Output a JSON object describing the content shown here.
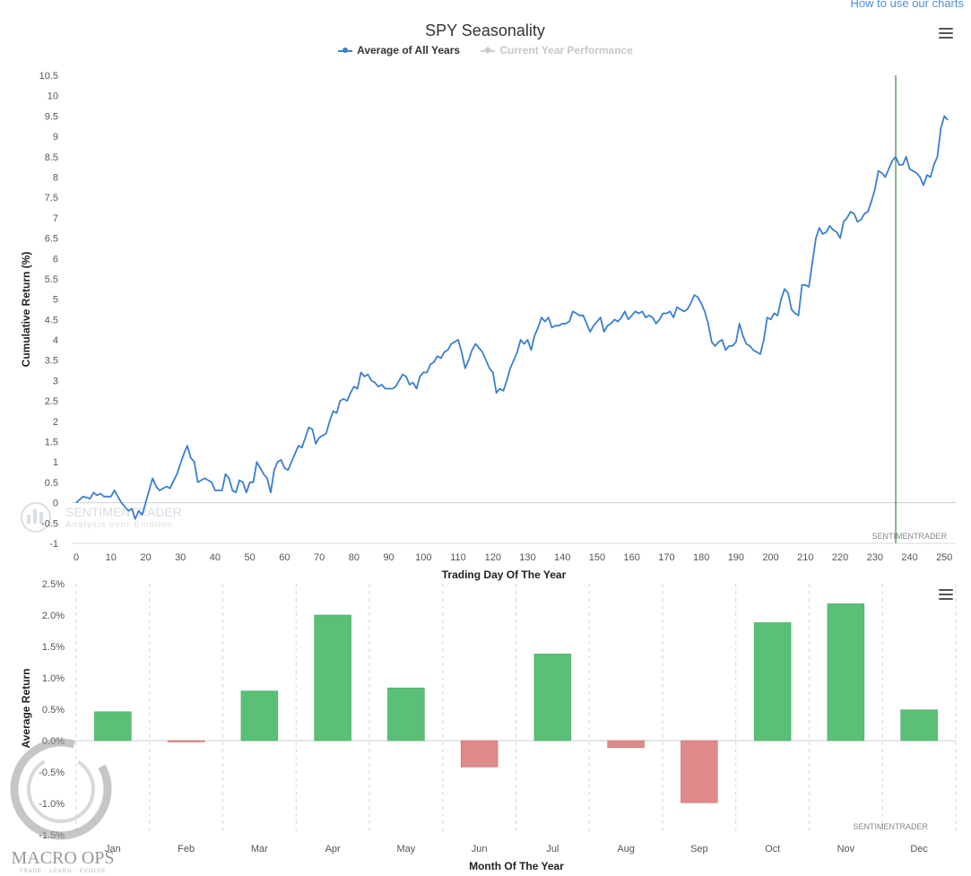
{
  "header": {
    "link_label": "How to use our charts"
  },
  "menu_icon": "hamburger-menu-icon",
  "chart_data": [
    {
      "type": "line",
      "title": "SPY Seasonality",
      "xlabel": "Trading Day Of The Year",
      "ylabel": "Cumulative Return (%)",
      "xlim": [
        0,
        252
      ],
      "ylim": [
        -1,
        10.5
      ],
      "x_ticks": [
        0,
        10,
        20,
        30,
        40,
        50,
        60,
        70,
        80,
        90,
        100,
        110,
        120,
        130,
        140,
        150,
        160,
        170,
        180,
        190,
        200,
        210,
        220,
        230,
        240,
        250
      ],
      "y_ticks": [
        -1,
        -0.5,
        0,
        0.5,
        1,
        1.5,
        2,
        2.5,
        3,
        3.5,
        4,
        4.5,
        5,
        5.5,
        6,
        6.5,
        7,
        7.5,
        8,
        8.5,
        9,
        9.5,
        10,
        10.5
      ],
      "vertical_line_x": 236,
      "vertical_line_color": "#1a6b1a",
      "credit": "SENTIMENTRADER",
      "watermark": {
        "brand": "SENTIMENTRADER",
        "tagline": "Analysis over Emotion"
      },
      "legend_position": "top-center",
      "series": [
        {
          "name": "Average of All Years",
          "color": "#3a7fd0",
          "points": [
            [
              0,
              0
            ],
            [
              2,
              0.15
            ],
            [
              4,
              0.1
            ],
            [
              5,
              0.25
            ],
            [
              6,
              0.18
            ],
            [
              7,
              0.22
            ],
            [
              8,
              0.15
            ],
            [
              10,
              0.15
            ],
            [
              11,
              0.3
            ],
            [
              13,
              0.0
            ],
            [
              15,
              -0.2
            ],
            [
              16,
              -0.15
            ],
            [
              17,
              -0.4
            ],
            [
              18,
              -0.2
            ],
            [
              19,
              -0.3
            ],
            [
              21,
              0.3
            ],
            [
              22,
              0.6
            ],
            [
              23,
              0.4
            ],
            [
              24,
              0.3
            ],
            [
              26,
              0.4
            ],
            [
              27,
              0.35
            ],
            [
              29,
              0.7
            ],
            [
              31,
              1.2
            ],
            [
              32,
              1.4
            ],
            [
              33,
              1.1
            ],
            [
              34,
              1.0
            ],
            [
              35,
              0.5
            ],
            [
              37,
              0.6
            ],
            [
              39,
              0.5
            ],
            [
              40,
              0.3
            ],
            [
              42,
              0.3
            ],
            [
              43,
              0.7
            ],
            [
              44,
              0.6
            ],
            [
              45,
              0.3
            ],
            [
              46,
              0.25
            ],
            [
              47,
              0.55
            ],
            [
              48,
              0.5
            ],
            [
              49,
              0.25
            ],
            [
              50,
              0.5
            ],
            [
              51,
              0.5
            ],
            [
              52,
              1.0
            ],
            [
              53,
              0.85
            ],
            [
              54,
              0.7
            ],
            [
              55,
              0.6
            ],
            [
              56,
              0.25
            ],
            [
              57,
              0.8
            ],
            [
              58,
              1.0
            ],
            [
              59,
              1.05
            ],
            [
              60,
              0.85
            ],
            [
              61,
              0.8
            ],
            [
              63,
              1.2
            ],
            [
              64,
              1.4
            ],
            [
              65,
              1.35
            ],
            [
              66,
              1.6
            ],
            [
              67,
              1.85
            ],
            [
              68,
              1.8
            ],
            [
              69,
              1.45
            ],
            [
              70,
              1.6
            ],
            [
              72,
              1.7
            ],
            [
              73,
              2.0
            ],
            [
              74,
              2.25
            ],
            [
              75,
              2.2
            ],
            [
              76,
              2.5
            ],
            [
              77,
              2.55
            ],
            [
              78,
              2.5
            ],
            [
              79,
              2.7
            ],
            [
              80,
              2.85
            ],
            [
              81,
              2.8
            ],
            [
              82,
              3.2
            ],
            [
              83,
              3.1
            ],
            [
              84,
              3.15
            ],
            [
              85,
              3.0
            ],
            [
              86,
              2.95
            ],
            [
              87,
              2.85
            ],
            [
              88,
              2.9
            ],
            [
              89,
              2.8
            ],
            [
              91,
              2.8
            ],
            [
              92,
              2.85
            ],
            [
              93,
              3.0
            ],
            [
              94,
              3.15
            ],
            [
              95,
              3.1
            ],
            [
              96,
              2.9
            ],
            [
              97,
              2.95
            ],
            [
              98,
              2.8
            ],
            [
              99,
              3.1
            ],
            [
              100,
              3.2
            ],
            [
              101,
              3.2
            ],
            [
              102,
              3.4
            ],
            [
              103,
              3.45
            ],
            [
              104,
              3.6
            ],
            [
              105,
              3.55
            ],
            [
              106,
              3.7
            ],
            [
              107,
              3.75
            ],
            [
              108,
              3.9
            ],
            [
              109,
              3.95
            ],
            [
              110,
              4.0
            ],
            [
              111,
              3.7
            ],
            [
              112,
              3.3
            ],
            [
              113,
              3.5
            ],
            [
              114,
              3.75
            ],
            [
              115,
              3.9
            ],
            [
              116,
              3.8
            ],
            [
              117,
              3.7
            ],
            [
              118,
              3.5
            ],
            [
              119,
              3.3
            ],
            [
              120,
              3.2
            ],
            [
              121,
              2.7
            ],
            [
              122,
              2.8
            ],
            [
              123,
              2.75
            ],
            [
              124,
              3.0
            ],
            [
              125,
              3.3
            ],
            [
              126,
              3.5
            ],
            [
              127,
              3.7
            ],
            [
              128,
              4.0
            ],
            [
              129,
              3.9
            ],
            [
              130,
              4.0
            ],
            [
              131,
              3.75
            ],
            [
              132,
              4.1
            ],
            [
              133,
              4.3
            ],
            [
              134,
              4.55
            ],
            [
              135,
              4.45
            ],
            [
              136,
              4.55
            ],
            [
              137,
              4.3
            ],
            [
              138,
              4.35
            ],
            [
              139,
              4.35
            ],
            [
              140,
              4.4
            ],
            [
              141,
              4.4
            ],
            [
              142,
              4.45
            ],
            [
              143,
              4.7
            ],
            [
              144,
              4.65
            ],
            [
              145,
              4.6
            ],
            [
              146,
              4.6
            ],
            [
              147,
              4.4
            ],
            [
              148,
              4.2
            ],
            [
              149,
              4.35
            ],
            [
              150,
              4.45
            ],
            [
              151,
              4.55
            ],
            [
              152,
              4.2
            ],
            [
              153,
              4.35
            ],
            [
              154,
              4.4
            ],
            [
              155,
              4.5
            ],
            [
              156,
              4.45
            ],
            [
              157,
              4.55
            ],
            [
              158,
              4.7
            ],
            [
              159,
              4.5
            ],
            [
              160,
              4.6
            ],
            [
              161,
              4.7
            ],
            [
              162,
              4.65
            ],
            [
              163,
              4.7
            ],
            [
              164,
              4.55
            ],
            [
              165,
              4.6
            ],
            [
              166,
              4.55
            ],
            [
              167,
              4.4
            ],
            [
              168,
              4.5
            ],
            [
              169,
              4.65
            ],
            [
              170,
              4.65
            ],
            [
              171,
              4.7
            ],
            [
              172,
              4.55
            ],
            [
              173,
              4.8
            ],
            [
              174,
              4.75
            ],
            [
              175,
              4.7
            ],
            [
              176,
              4.75
            ],
            [
              177,
              4.9
            ],
            [
              178,
              5.1
            ],
            [
              179,
              5.05
            ],
            [
              180,
              4.9
            ],
            [
              181,
              4.7
            ],
            [
              182,
              4.4
            ],
            [
              183,
              3.95
            ],
            [
              184,
              3.85
            ],
            [
              185,
              3.95
            ],
            [
              186,
              4.0
            ],
            [
              187,
              3.75
            ],
            [
              188,
              3.85
            ],
            [
              189,
              3.85
            ],
            [
              190,
              3.95
            ],
            [
              191,
              4.4
            ],
            [
              192,
              4.1
            ],
            [
              193,
              3.9
            ],
            [
              194,
              3.85
            ],
            [
              195,
              3.75
            ],
            [
              196,
              3.7
            ],
            [
              197,
              3.65
            ],
            [
              198,
              4.0
            ],
            [
              199,
              4.55
            ],
            [
              200,
              4.5
            ],
            [
              201,
              4.65
            ],
            [
              202,
              4.6
            ],
            [
              203,
              5.0
            ],
            [
              204,
              5.25
            ],
            [
              205,
              5.15
            ],
            [
              206,
              4.75
            ],
            [
              207,
              4.65
            ],
            [
              208,
              4.6
            ],
            [
              209,
              5.35
            ],
            [
              210,
              5.35
            ],
            [
              211,
              5.3
            ],
            [
              212,
              5.9
            ],
            [
              213,
              6.5
            ],
            [
              214,
              6.75
            ],
            [
              215,
              6.6
            ],
            [
              216,
              6.65
            ],
            [
              217,
              6.8
            ],
            [
              218,
              6.7
            ],
            [
              219,
              6.65
            ],
            [
              220,
              6.5
            ],
            [
              221,
              6.9
            ],
            [
              222,
              7.0
            ],
            [
              223,
              7.15
            ],
            [
              224,
              7.1
            ],
            [
              225,
              6.9
            ],
            [
              226,
              6.95
            ],
            [
              227,
              7.1
            ],
            [
              228,
              7.15
            ],
            [
              229,
              7.4
            ],
            [
              230,
              7.7
            ],
            [
              231,
              8.15
            ],
            [
              232,
              8.1
            ],
            [
              233,
              8.0
            ],
            [
              234,
              8.2
            ],
            [
              235,
              8.4
            ],
            [
              236,
              8.5
            ],
            [
              237,
              8.3
            ],
            [
              238,
              8.3
            ],
            [
              239,
              8.5
            ],
            [
              240,
              8.2
            ],
            [
              241,
              8.15
            ],
            [
              242,
              8.1
            ],
            [
              243,
              8.0
            ],
            [
              244,
              7.8
            ],
            [
              245,
              8.05
            ],
            [
              246,
              8.0
            ],
            [
              247,
              8.3
            ],
            [
              248,
              8.5
            ],
            [
              249,
              9.2
            ],
            [
              250,
              9.5
            ],
            [
              251,
              9.4
            ]
          ]
        },
        {
          "name": "Current Year Performance",
          "color": "#cccccc",
          "hidden": true,
          "points": []
        }
      ]
    },
    {
      "type": "bar",
      "xlabel": "Month Of The Year",
      "ylabel": "Average Return",
      "categories": [
        "Jan",
        "Feb",
        "Mar",
        "Apr",
        "May",
        "Jun",
        "Jul",
        "Aug",
        "Sep",
        "Oct",
        "Nov",
        "Dec"
      ],
      "values": [
        0.46,
        -0.02,
        0.79,
        2.0,
        0.84,
        -0.42,
        1.38,
        -0.11,
        -0.99,
        1.88,
        2.18,
        0.49
      ],
      "ylim": [
        -1.5,
        2.5
      ],
      "y_ticks": [
        -1.5,
        -1.0,
        -0.5,
        0.0,
        0.5,
        1.0,
        1.5,
        2.0,
        2.5
      ],
      "y_tick_labels": [
        "-1.5%",
        "-1.0%",
        "-0.5%",
        "0.0%",
        "0.5%",
        "1.0%",
        "1.5%",
        "2.0%",
        "2.5%"
      ],
      "positive_color": "#5abf77",
      "negative_color": "#de8a8a",
      "credit": "SENTIMENTRADER",
      "watermark": {
        "brand": "MACRO OPS",
        "tagline": "TRADE · LEARN · EVOLVE"
      }
    }
  ]
}
